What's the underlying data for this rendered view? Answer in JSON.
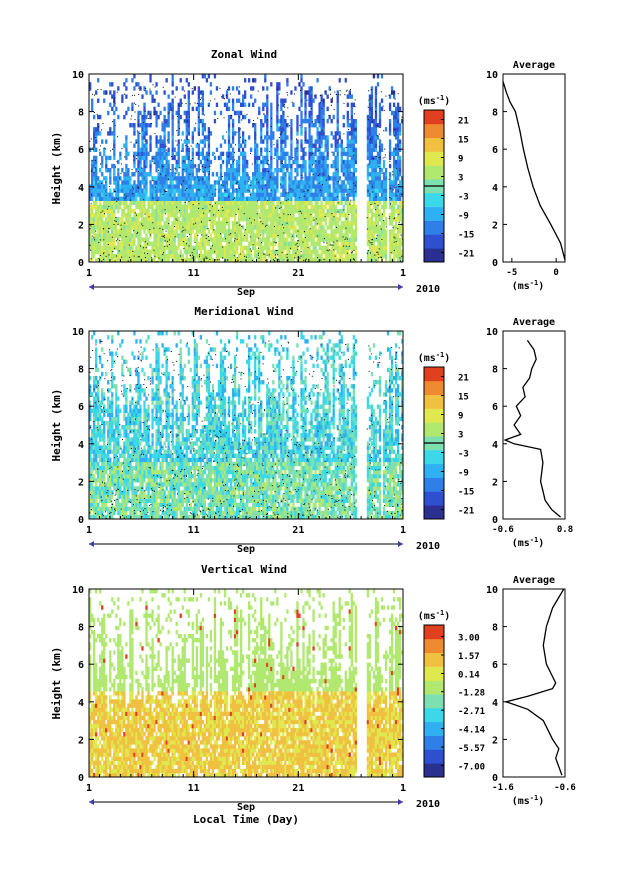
{
  "figure": {
    "xlabel": "Local Time (Day)",
    "month_label": "Sep",
    "year_label": "2010"
  },
  "colormap": [
    "#2b2f8f",
    "#2e4fd0",
    "#2f7fe8",
    "#2fb0f0",
    "#3ad8e8",
    "#7ee0b0",
    "#b0e870",
    "#e0e850",
    "#f0c040",
    "#f08a30",
    "#e04020"
  ],
  "chart_data": [
    {
      "type": "heatmap",
      "title": "Zonal Wind",
      "ylabel": "Height (km)",
      "ylim": [
        0,
        10
      ],
      "y_ticks": [
        "0",
        "2",
        "4",
        "6",
        "8",
        "10"
      ],
      "x_ticks": [
        "1",
        "11",
        "21",
        "1"
      ],
      "x_tick_days": [
        1,
        11,
        21,
        31
      ],
      "xlim": [
        1,
        31
      ],
      "colorbar": {
        "unit": "(ms-1)",
        "range": [
          -24,
          24
        ],
        "tick_labels": [
          "21",
          "15",
          "9",
          "3",
          "-3",
          "-9",
          "-15",
          "-21"
        ],
        "tick_values": [
          21,
          15,
          9,
          3,
          -3,
          -9,
          -15,
          -21
        ],
        "marker_value": 0
      },
      "gaps_days": [
        [
          26.5,
          27.5
        ],
        [
          29.4,
          29.6
        ]
      ],
      "average_profile": {
        "title": "Average",
        "xlabel": "(ms-1)",
        "xlim": [
          -6,
          1
        ],
        "x_ticks": [
          "-5",
          "0"
        ],
        "x_tick_values": [
          -5,
          0
        ],
        "height_km": [
          0.1,
          1.0,
          2.0,
          3.0,
          4.0,
          5.0,
          6.0,
          7.0,
          8.0,
          8.5,
          9.0,
          9.6
        ],
        "value": [
          1.0,
          0.5,
          -0.6,
          -1.8,
          -2.6,
          -3.2,
          -3.7,
          -4.1,
          -4.6,
          -5.2,
          -5.6,
          -6.0
        ]
      }
    },
    {
      "type": "heatmap",
      "title": "Meridional Wind",
      "ylabel": "Height (km)",
      "ylim": [
        0,
        10
      ],
      "y_ticks": [
        "0",
        "2",
        "4",
        "6",
        "8",
        "10"
      ],
      "x_ticks": [
        "1",
        "11",
        "21",
        "1"
      ],
      "x_tick_days": [
        1,
        11,
        21,
        31
      ],
      "xlim": [
        1,
        31
      ],
      "colorbar": {
        "unit": "(ms-1)",
        "range": [
          -24,
          24
        ],
        "tick_labels": [
          "21",
          "15",
          "9",
          "3",
          "-3",
          "-9",
          "-15",
          "-21"
        ],
        "tick_values": [
          21,
          15,
          9,
          3,
          -3,
          -9,
          -15,
          -21
        ],
        "marker_value": 0
      },
      "gaps_days": [
        [
          26.5,
          27.5
        ],
        [
          28.9,
          29.1
        ]
      ],
      "average_profile": {
        "title": "Average",
        "xlabel": "(ms-1)",
        "xlim": [
          -0.6,
          0.8
        ],
        "x_ticks": [
          "-0.6",
          "0.8"
        ],
        "x_tick_values": [
          -0.6,
          0.8
        ],
        "height_km": [
          0.1,
          0.5,
          1.0,
          1.5,
          2.0,
          3.0,
          3.7,
          4.0,
          4.2,
          4.5,
          5.0,
          5.5,
          6.0,
          6.5,
          7.0,
          7.5,
          8.0,
          8.5,
          9.0,
          9.5
        ],
        "value": [
          0.7,
          0.5,
          0.35,
          0.3,
          0.25,
          0.3,
          0.25,
          -0.35,
          -0.55,
          -0.2,
          -0.35,
          -0.2,
          -0.3,
          -0.1,
          -0.15,
          0.0,
          0.05,
          0.15,
          0.1,
          -0.05
        ]
      }
    },
    {
      "type": "heatmap",
      "title": "Vertical Wind",
      "ylabel": "Height (km)",
      "ylim": [
        0,
        10
      ],
      "y_ticks": [
        "0",
        "2",
        "4",
        "6",
        "8",
        "10"
      ],
      "x_ticks": [
        "1",
        "11",
        "21",
        "1"
      ],
      "x_tick_days": [
        1,
        11,
        21,
        31
      ],
      "xlim": [
        1,
        31
      ],
      "colorbar": {
        "unit": "(ms-1)",
        "range": [
          -7.9,
          3.9
        ],
        "tick_labels": [
          "3.00",
          "1.57",
          "0.14",
          "-1.28",
          "-2.71",
          "-4.14",
          "-5.57",
          "-7.00"
        ],
        "tick_values": [
          3.0,
          1.57,
          0.14,
          -1.28,
          -2.71,
          -4.14,
          -5.57,
          -7.0
        ],
        "marker_value": null
      },
      "gaps_days": [
        [
          26.5,
          27.5
        ]
      ],
      "average_profile": {
        "title": "Average",
        "xlabel": "(ms-1)",
        "xlim": [
          -1.6,
          -0.6
        ],
        "x_ticks": [
          "-1.6",
          "-0.6"
        ],
        "x_tick_values": [
          -1.6,
          -0.6
        ],
        "height_km": [
          0.1,
          1.0,
          1.5,
          2.0,
          3.0,
          3.6,
          4.0,
          4.3,
          4.7,
          5.0,
          6.0,
          7.0,
          8.0,
          9.0,
          10.0
        ],
        "value": [
          -0.65,
          -0.75,
          -0.7,
          -0.8,
          -0.95,
          -1.2,
          -1.55,
          -1.2,
          -0.8,
          -0.75,
          -0.9,
          -0.95,
          -0.9,
          -0.8,
          -0.62
        ]
      }
    }
  ]
}
